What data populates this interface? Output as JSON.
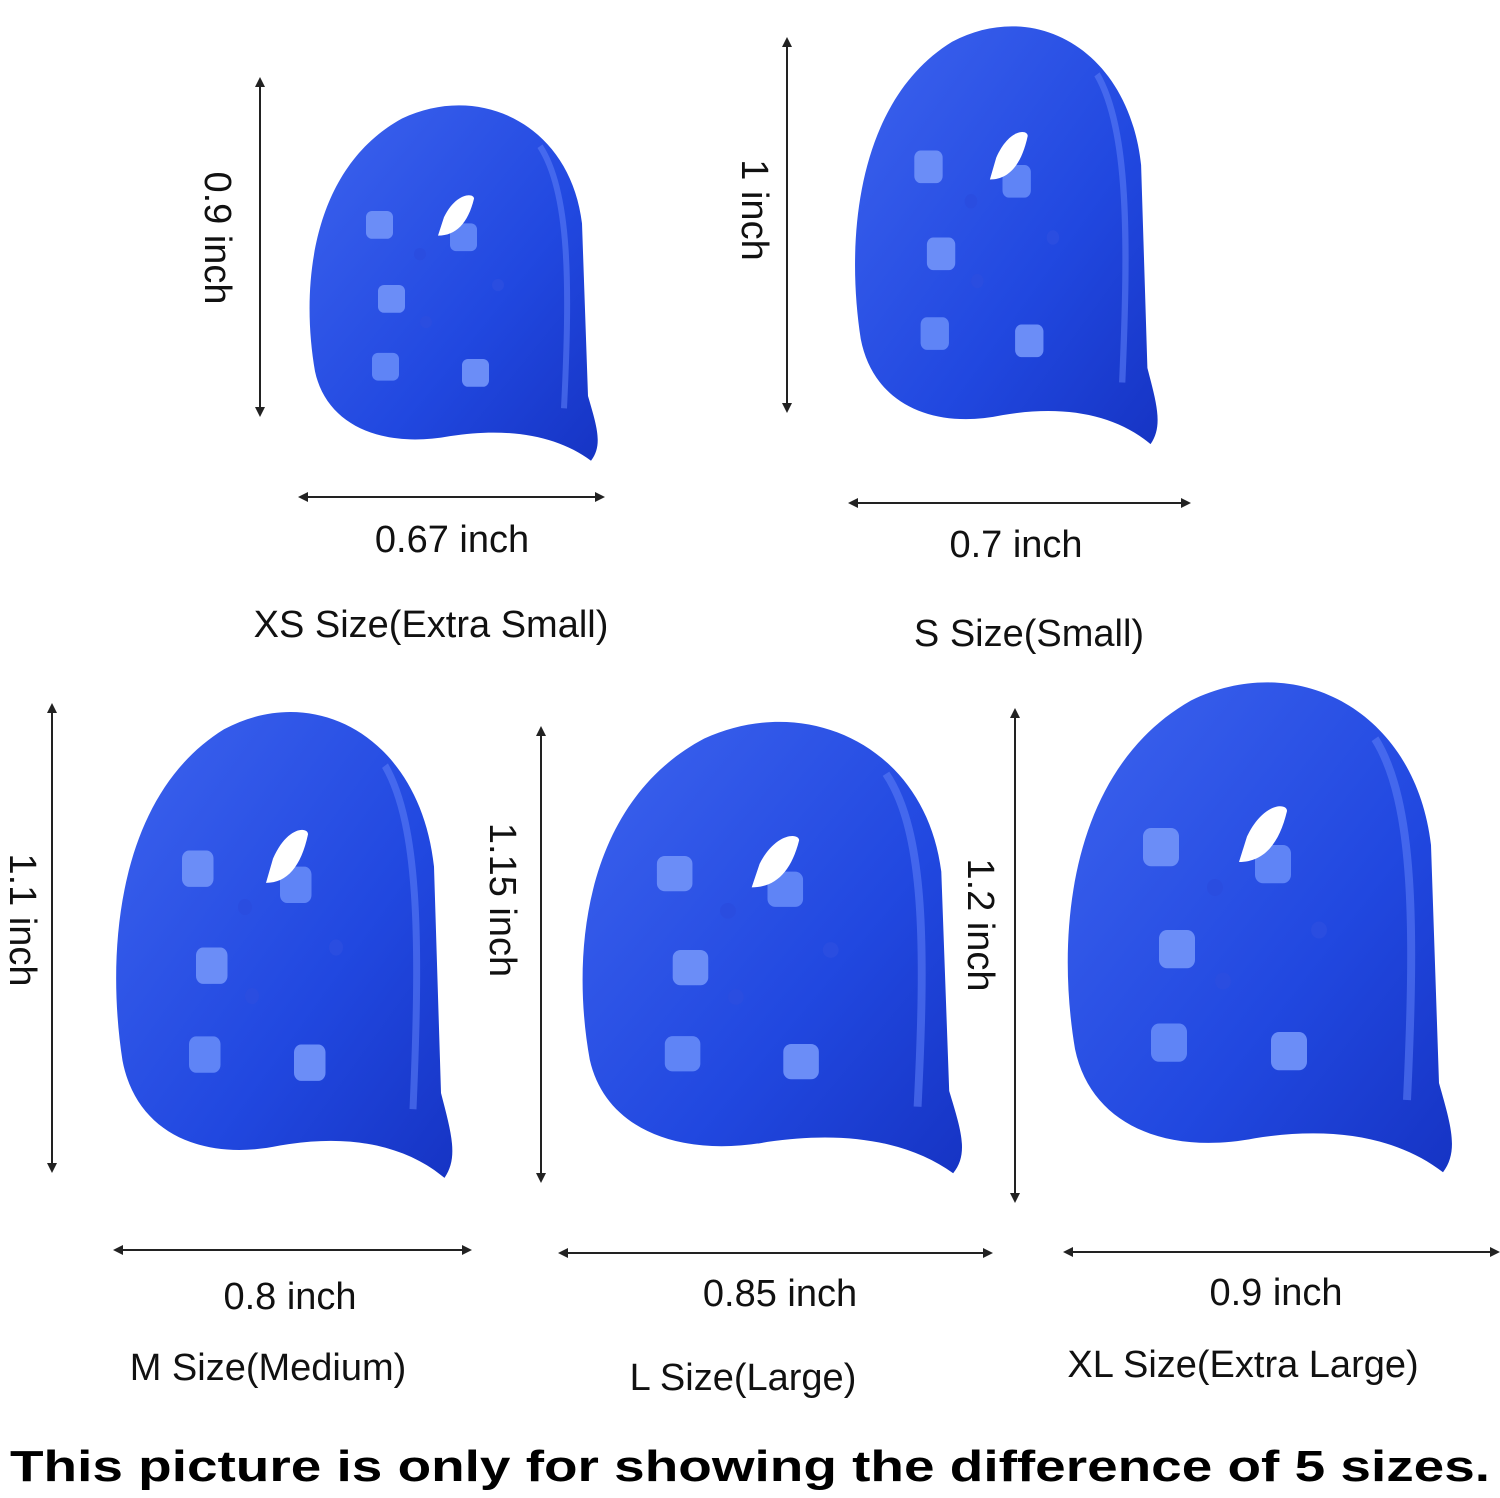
{
  "items": [
    {
      "height": "0.9 inch",
      "width": "0.67 inch",
      "size": "XS Size(Extra Small)"
    },
    {
      "height": "1 inch",
      "width": "0.7 inch",
      "size": "S Size(Small)"
    },
    {
      "height": "1.1 inch",
      "width": "0.8 inch",
      "size": "M Size(Medium)"
    },
    {
      "height": "1.15 inch",
      "width": "0.85 inch",
      "size": "L Size(Large)"
    },
    {
      "height": "1.2 inch",
      "width": "0.9 inch",
      "size": "XL Size(Extra Large)"
    }
  ],
  "caption": "This picture is only for showing the difference of 5 sizes."
}
